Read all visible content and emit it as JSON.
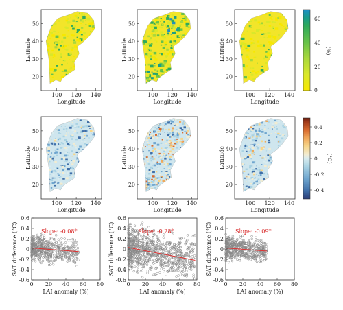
{
  "figure": {
    "map_xticks": [
      "100",
      "120",
      "140"
    ],
    "map_yticks": [
      "50",
      "40",
      "30",
      "20"
    ],
    "map_xlabel": "Longitude",
    "map_ylabel": "Latitude",
    "row1_colorbar": {
      "ticks": [
        "60",
        "40",
        "20",
        "0"
      ],
      "unit": "(%)"
    },
    "row2_colorbar": {
      "ticks": [
        "0.4",
        "0.2",
        "0",
        "-0.2",
        "-0.4"
      ],
      "unit": "(°C)"
    },
    "scatter_xticks": [
      "0",
      "20",
      "40",
      "60",
      "80"
    ],
    "scatter_yticks": [
      "0.6",
      "0.4",
      "0.2",
      "0",
      "-0.2",
      "-0.4",
      "-0.6"
    ],
    "scatter_xlabel": "LAI anomaly (%)",
    "scatter_ylabel": "SAT difference (°C)"
  },
  "colors": {
    "row1_scale": [
      "#f7e800",
      "#d9e82a",
      "#a8d83c",
      "#66c24a",
      "#2faa5c",
      "#1a9c8a",
      "#1e8ec6"
    ],
    "row2_scale": [
      "#2c3e78",
      "#3f6fa8",
      "#6fa6cf",
      "#a9d2e3",
      "#d9ecef",
      "#f3ecd0",
      "#f6d58a",
      "#f0a95c",
      "#d86b2f",
      "#a03a1a",
      "#6b1e10"
    ],
    "scatter_point": "#888888",
    "fit_line": "#e03030"
  },
  "chart_data": [
    {
      "type": "heatmap",
      "panel": "row1-col1",
      "value_range": [
        0,
        60
      ],
      "dominant_level": "low",
      "grid": false
    },
    {
      "type": "heatmap",
      "panel": "row1-col2",
      "value_range": [
        0,
        60
      ],
      "dominant_level": "low-medium",
      "grid": false
    },
    {
      "type": "heatmap",
      "panel": "row1-col3",
      "value_range": [
        0,
        60
      ],
      "dominant_level": "low",
      "grid": false
    },
    {
      "type": "heatmap",
      "panel": "row2-col1",
      "value_range": [
        -0.4,
        0.4
      ],
      "dominant_level": "near zero",
      "grid": false
    },
    {
      "type": "heatmap",
      "panel": "row2-col2",
      "value_range": [
        -0.4,
        0.4
      ],
      "dominant_level": "mixed",
      "grid": false
    },
    {
      "type": "heatmap",
      "panel": "row2-col3",
      "value_range": [
        -0.4,
        0.4
      ],
      "dominant_level": "near zero",
      "grid": false
    },
    {
      "type": "scatter",
      "panel": "row3-col1",
      "xlim": [
        0,
        80
      ],
      "ylim": [
        -0.6,
        0.6
      ],
      "annotation": "Slope: -0.08*",
      "slope": -0.08,
      "fit": {
        "x": [
          0,
          55
        ],
        "y": [
          0.02,
          -0.05
        ]
      },
      "x_extent": [
        0,
        55
      ],
      "spread": 0.18
    },
    {
      "type": "scatter",
      "panel": "row3-col2",
      "xlim": [
        0,
        80
      ],
      "ylim": [
        -0.6,
        0.6
      ],
      "annotation": "Slope: -0.28*",
      "slope": -0.28,
      "fit": {
        "x": [
          0,
          78
        ],
        "y": [
          0.03,
          -0.22
        ]
      },
      "x_extent": [
        0,
        78
      ],
      "spread": 0.3
    },
    {
      "type": "scatter",
      "panel": "row3-col3",
      "xlim": [
        0,
        80
      ],
      "ylim": [
        -0.6,
        0.6
      ],
      "annotation": "Slope: -0.09*",
      "slope": -0.09,
      "fit": {
        "x": [
          0,
          48
        ],
        "y": [
          0.02,
          -0.04
        ]
      },
      "x_extent": [
        0,
        48
      ],
      "spread": 0.16
    }
  ]
}
